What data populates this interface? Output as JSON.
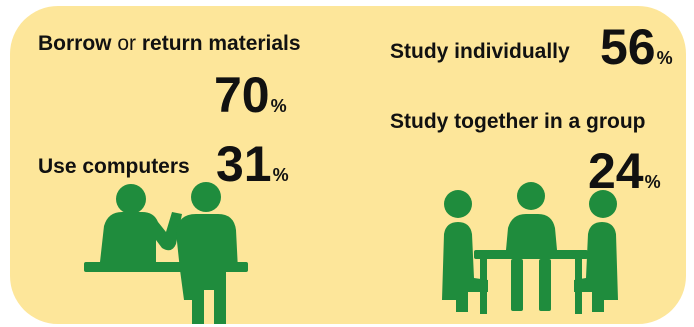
{
  "chart_data": {
    "type": "table",
    "title": "",
    "items": [
      {
        "id": "borrow",
        "label_parts": [
          "Borrow",
          " or ",
          "return materials"
        ],
        "value": 70,
        "unit": "%"
      },
      {
        "id": "computers",
        "label": "Use computers",
        "value": 31,
        "unit": "%"
      },
      {
        "id": "individual",
        "label": "Study individually",
        "value": 56,
        "unit": "%"
      },
      {
        "id": "group",
        "label": "Study together in a group",
        "value": 24,
        "unit": "%"
      }
    ]
  },
  "colors": {
    "panel": "#fde69a",
    "figure": "#1f8c3d",
    "text": "#111111"
  },
  "icons": [
    "librarian-and-patron-icon",
    "group-study-table-icon"
  ]
}
